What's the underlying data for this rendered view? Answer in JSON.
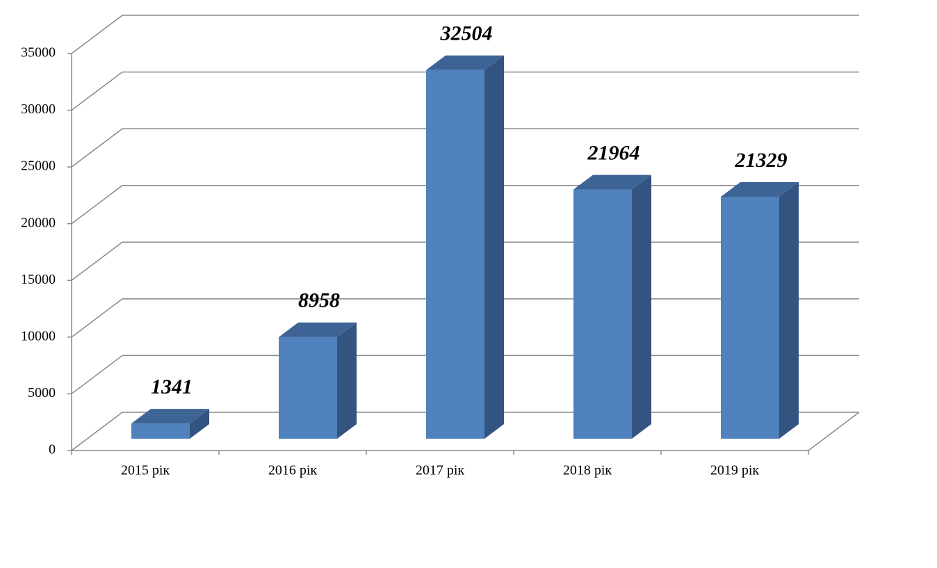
{
  "chart_data": {
    "type": "bar3d",
    "categories": [
      "2015 рік",
      "2016 рік",
      "2017 рік",
      "2018 рік",
      "2019 рік"
    ],
    "values": [
      1341,
      8958,
      32504,
      21964,
      21329
    ],
    "color": "#4f81bd",
    "ylim": [
      0,
      35000
    ],
    "yticks": [
      0,
      5000,
      10000,
      15000,
      20000,
      25000,
      30000,
      35000
    ],
    "grid": true
  }
}
